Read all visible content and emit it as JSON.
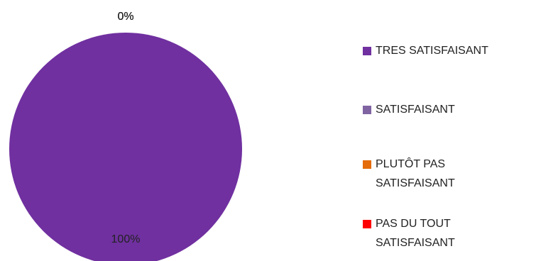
{
  "chart_data": {
    "type": "pie",
    "categories": [
      "TRES SATISFAISANT",
      "SATISFAISANT",
      "PLUTÔT PAS SATISFAISANT",
      "PAS DU TOUT SATISFAISANT"
    ],
    "values": [
      100,
      0,
      0,
      0
    ],
    "value_labels": [
      "100%",
      "0%",
      "0%",
      "0%"
    ],
    "colors": [
      "#7030a0",
      "#8064a2",
      "#e46c0a",
      "#ff0000"
    ],
    "legend": "right"
  }
}
